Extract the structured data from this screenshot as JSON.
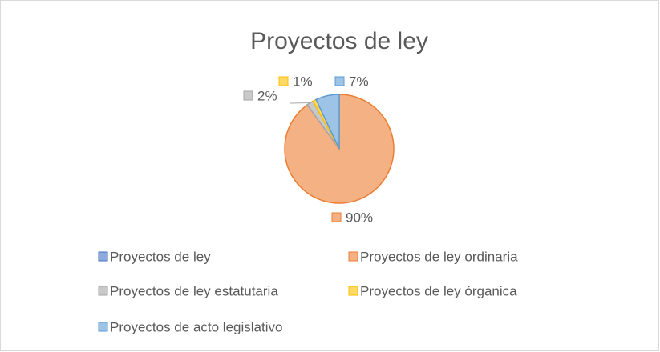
{
  "chart_data": {
    "type": "pie",
    "title": "Proyectos de ley",
    "categories": [
      "Proyectos de ley",
      "Proyectos de ley ordinaria",
      "Proyectos de ley estatutaria",
      "Proyectos de ley órganica",
      "Proyectos de acto legislativo"
    ],
    "values": [
      0,
      90,
      2,
      1,
      7
    ],
    "value_labels": [
      null,
      "90%",
      "2%",
      "1%",
      "7%"
    ],
    "colors": [
      "#8faadc",
      "#f4b183",
      "#c9c9c9",
      "#ffd966",
      "#9dc3e6"
    ],
    "edge_colors": [
      "#4472c4",
      "#ed7d31",
      "#a5a5a5",
      "#ffc000",
      "#5b9bd5"
    ],
    "legend": "bottom"
  }
}
